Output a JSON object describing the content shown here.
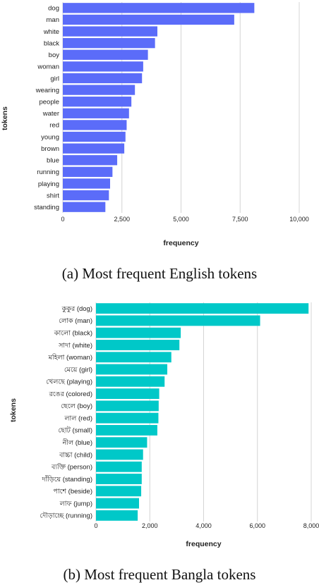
{
  "chart_data": [
    {
      "type": "bar",
      "orientation": "horizontal",
      "categories": [
        "dog",
        "man",
        "white",
        "black",
        "boy",
        "woman",
        "girl",
        "wearing",
        "people",
        "water",
        "red",
        "young",
        "brown",
        "blue",
        "running",
        "playing",
        "shirt",
        "standing"
      ],
      "values": [
        8100,
        7250,
        4000,
        3900,
        3600,
        3400,
        3350,
        3050,
        2900,
        2800,
        2700,
        2650,
        2600,
        2300,
        2100,
        2000,
        1950,
        1800
      ],
      "xlabel": "frequency",
      "ylabel": "tokens",
      "xticks": [
        0,
        2500,
        5000,
        7500,
        10000
      ],
      "xtick_labels": [
        "0",
        "2,500",
        "5,000",
        "7,500",
        "10,000"
      ],
      "xlim": [
        0,
        10000
      ],
      "bar_color": "#5b6cf9",
      "grid": "vertical",
      "caption": "(a) Most frequent English tokens"
    },
    {
      "type": "bar",
      "orientation": "horizontal",
      "categories": [
        "কুকুর (dog)",
        "লোক (man)",
        "কালো (black)",
        "সাদা (white)",
        "মহিলা (woman)",
        "মেয়ে (girl)",
        "খেলছে (playing)",
        "রঙের (colored)",
        "ছেলে (boy)",
        "লাল (red)",
        "ছোট (small)",
        "নীল (blue)",
        "বাচ্চা (child)",
        "ব্যক্তি (person)",
        "দাঁড়িয়ে (standing)",
        "পাশে (beside)",
        "লাফ (jump)",
        "দৌড়াচ্ছে (running)"
      ],
      "values": [
        7900,
        6100,
        3150,
        3100,
        2800,
        2650,
        2550,
        2350,
        2330,
        2320,
        2280,
        1900,
        1750,
        1700,
        1700,
        1680,
        1600,
        1550
      ],
      "xlabel": "frequency",
      "ylabel": "tokens",
      "xticks": [
        0,
        2000,
        4000,
        6000,
        8000
      ],
      "xtick_labels": [
        "0",
        "2,000",
        "4,000",
        "6,000",
        "8,000"
      ],
      "xlim": [
        0,
        8000
      ],
      "bar_color": "#00c8c8",
      "grid": "vertical",
      "caption": "(b) Most frequent Bangla tokens"
    }
  ]
}
